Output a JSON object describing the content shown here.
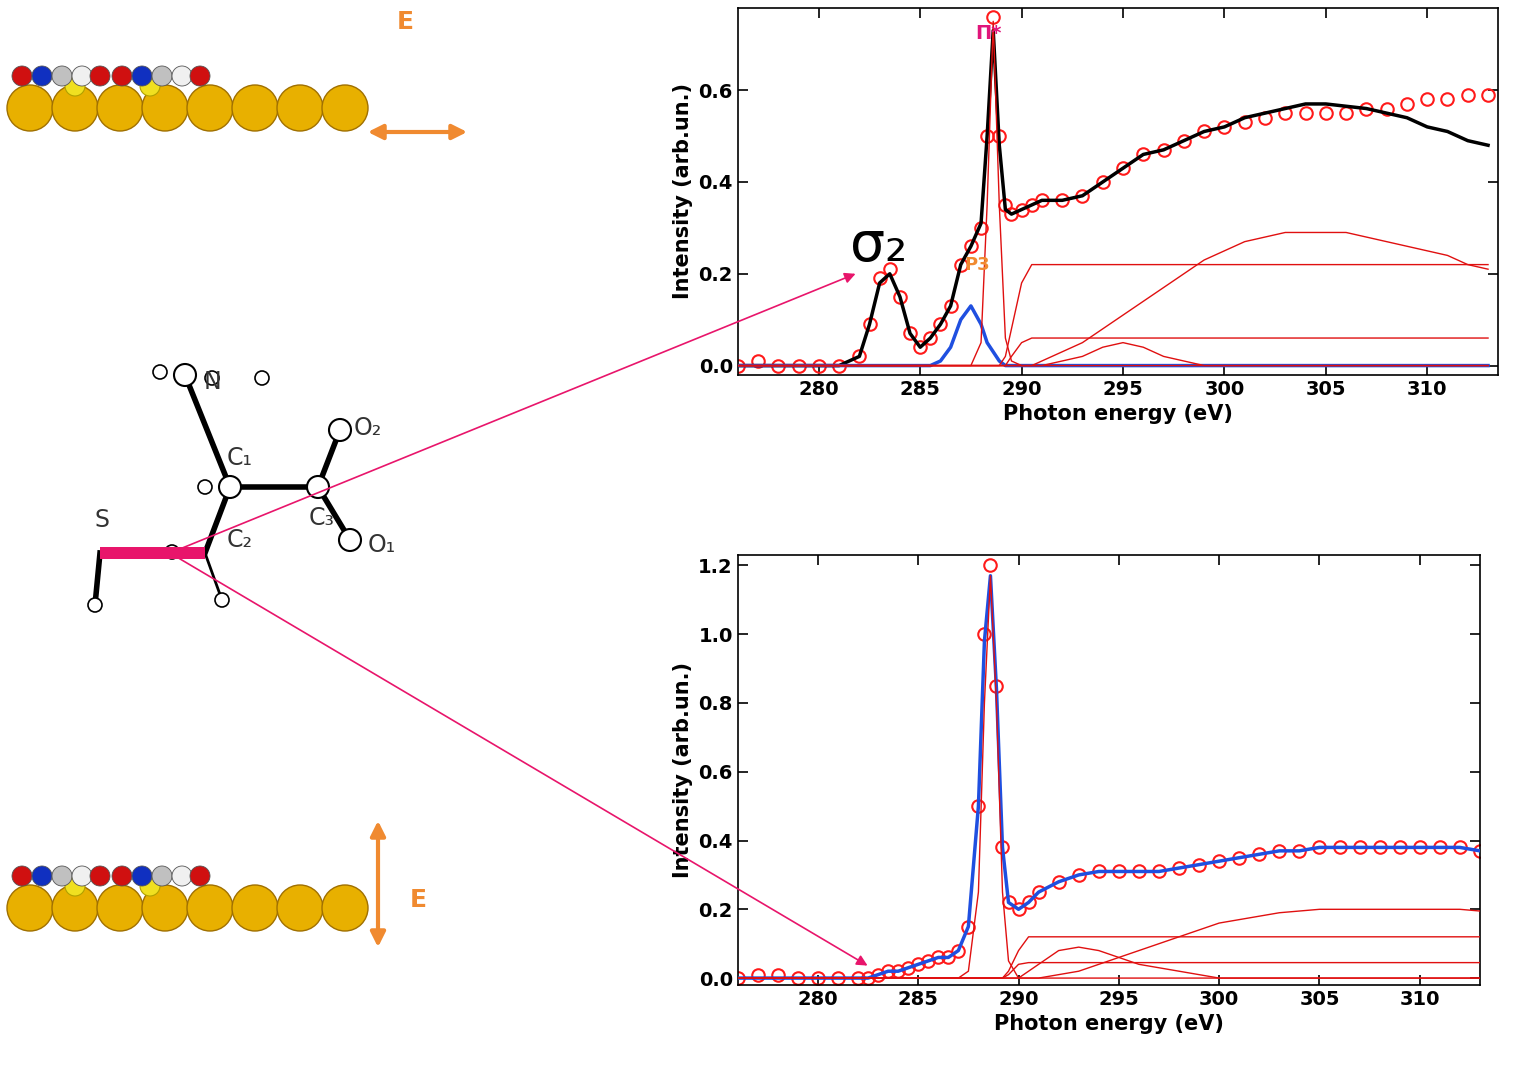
{
  "chart_data": [
    {
      "type": "line",
      "x_label": "Photon energy (eV)",
      "y_label": "Intensity (arb.un.)",
      "x": [
        276,
        277,
        278,
        279,
        280,
        281,
        282,
        282.5,
        283,
        283.5,
        284,
        284.5,
        285,
        285.5,
        286,
        286.5,
        287,
        287.5,
        288,
        288.3,
        288.6,
        288.9,
        289.2,
        289.5,
        290,
        290.5,
        291,
        292,
        293,
        294,
        295,
        296,
        297,
        298,
        299,
        300,
        301,
        302,
        303,
        304,
        305,
        306,
        307,
        308,
        309,
        310,
        311,
        312,
        313
      ],
      "xlim": [
        276,
        313.5
      ],
      "ylim": [
        -0.02,
        0.78
      ],
      "xticks": [
        280,
        285,
        290,
        295,
        300,
        305,
        310
      ],
      "yticks": [
        {
          "value": 0,
          "label": "0.0"
        },
        0.2,
        0.4,
        0.6
      ],
      "annotations": [
        {
          "text": "σ₂",
          "color": "#000000"
        },
        {
          "text": "Π*",
          "color": "#e0157a"
        },
        {
          "text": "P3",
          "color": "#f08a30"
        }
      ],
      "series": [
        {
          "color": "#ff1a1a",
          "marker": "circle",
          "line_style": "none",
          "values": [
            0,
            0.01,
            0,
            0,
            0,
            0,
            0.02,
            0.09,
            0.19,
            0.21,
            0.15,
            0.07,
            0.04,
            0.06,
            0.09,
            0.13,
            0.22,
            0.26,
            0.3,
            0.5,
            0.76,
            0.5,
            0.35,
            0.33,
            0.34,
            0.35,
            0.36,
            0.36,
            0.37,
            0.4,
            0.43,
            0.46,
            0.47,
            0.49,
            0.51,
            0.52,
            0.53,
            0.54,
            0.55,
            0.55,
            0.55,
            0.55,
            0.56,
            0.56,
            0.57,
            0.58,
            0.58,
            0.59,
            0.59
          ]
        },
        {
          "color": "#000000",
          "marker": "none",
          "line_style": "solid",
          "values": [
            0,
            0,
            0,
            0,
            0,
            0,
            0.02,
            0.09,
            0.18,
            0.2,
            0.15,
            0.07,
            0.04,
            0.06,
            0.09,
            0.13,
            0.22,
            0.26,
            0.31,
            0.5,
            0.73,
            0.48,
            0.34,
            0.33,
            0.34,
            0.35,
            0.36,
            0.36,
            0.37,
            0.4,
            0.43,
            0.46,
            0.47,
            0.49,
            0.51,
            0.52,
            0.54,
            0.55,
            0.56,
            0.57,
            0.57,
            0.565,
            0.56,
            0.55,
            0.54,
            0.52,
            0.51,
            0.49,
            0.48
          ]
        },
        {
          "color": "#1f4fe0",
          "marker": "none",
          "line_style": "solid",
          "values": [
            0,
            0,
            0,
            0,
            0,
            0,
            0,
            0,
            0,
            0,
            0,
            0,
            0,
            0,
            0.01,
            0.04,
            0.1,
            0.13,
            0.09,
            0.05,
            0.03,
            0.01,
            0,
            0,
            0,
            0,
            0,
            0,
            0,
            0,
            0,
            0,
            0,
            0,
            0,
            0,
            0,
            0,
            0,
            0,
            0,
            0,
            0,
            0,
            0,
            0,
            0,
            0,
            0
          ]
        },
        {
          "color": "#e01010",
          "marker": "none",
          "line_style": "solid",
          "values": [
            0,
            0,
            0,
            0,
            0,
            0,
            0,
            0,
            0,
            0,
            0,
            0,
            0,
            0,
            0,
            0,
            0,
            0,
            0.05,
            0.35,
            0.75,
            0.35,
            0.06,
            0.01,
            0,
            0,
            0,
            0,
            0,
            0,
            0,
            0,
            0,
            0,
            0,
            0,
            0,
            0,
            0,
            0,
            0,
            0,
            0,
            0,
            0,
            0,
            0,
            0,
            0
          ]
        },
        {
          "color": "#e01010",
          "marker": "none",
          "line_style": "solid",
          "values": [
            0,
            0,
            0,
            0,
            0,
            0,
            0,
            0,
            0,
            0,
            0,
            0,
            0,
            0,
            0,
            0,
            0,
            0,
            0,
            0,
            0,
            0,
            0.02,
            0.08,
            0.18,
            0.22,
            0.22,
            0.22,
            0.22,
            0.22,
            0.22,
            0.22,
            0.22,
            0.22,
            0.22,
            0.22,
            0.22,
            0.22,
            0.22,
            0.22,
            0.22,
            0.22,
            0.22,
            0.22,
            0.22,
            0.22,
            0.22,
            0.22,
            0.22
          ]
        },
        {
          "color": "#e01010",
          "marker": "none",
          "line_style": "solid",
          "values": [
            0,
            0,
            0,
            0,
            0,
            0,
            0,
            0,
            0,
            0,
            0,
            0,
            0,
            0,
            0,
            0,
            0,
            0,
            0,
            0,
            0,
            0,
            0,
            0.02,
            0.05,
            0.06,
            0.06,
            0.06,
            0.06,
            0.06,
            0.06,
            0.06,
            0.06,
            0.06,
            0.06,
            0.06,
            0.06,
            0.06,
            0.06,
            0.06,
            0.06,
            0.06,
            0.06,
            0.06,
            0.06,
            0.06,
            0.06,
            0.06,
            0.06
          ]
        },
        {
          "color": "#e01010",
          "marker": "none",
          "line_style": "solid",
          "values": [
            0,
            0,
            0,
            0,
            0,
            0,
            0,
            0,
            0,
            0,
            0,
            0,
            0,
            0,
            0,
            0,
            0,
            0,
            0,
            0,
            0,
            0,
            0,
            0,
            0,
            0,
            0.01,
            0.03,
            0.05,
            0.08,
            0.11,
            0.14,
            0.17,
            0.2,
            0.23,
            0.25,
            0.27,
            0.28,
            0.29,
            0.29,
            0.29,
            0.29,
            0.28,
            0.27,
            0.26,
            0.25,
            0.24,
            0.22,
            0.21
          ]
        },
        {
          "color": "#e01010",
          "marker": "none",
          "line_style": "solid",
          "values": [
            0,
            0,
            0,
            0,
            0,
            0,
            0,
            0,
            0,
            0,
            0,
            0,
            0,
            0,
            0,
            0,
            0,
            0,
            0,
            0,
            0,
            0,
            0,
            0,
            0,
            0,
            0,
            0.01,
            0.02,
            0.04,
            0.05,
            0.04,
            0.02,
            0.01,
            0,
            0,
            0,
            0,
            0,
            0,
            0,
            0,
            0,
            0,
            0,
            0,
            0,
            0,
            0
          ]
        }
      ]
    },
    {
      "type": "line",
      "x_label": "Photon energy (eV)",
      "y_label": "Intensity (arb.un.)",
      "x": [
        276,
        277,
        278,
        279,
        280,
        281,
        282,
        282.5,
        283,
        283.5,
        284,
        284.5,
        285,
        285.5,
        286,
        286.5,
        287,
        287.5,
        288,
        288.3,
        288.6,
        288.9,
        289.2,
        289.5,
        290,
        290.5,
        291,
        292,
        293,
        294,
        295,
        296,
        297,
        298,
        299,
        300,
        301,
        302,
        303,
        304,
        305,
        306,
        307,
        308,
        309,
        310,
        311,
        312,
        313
      ],
      "xlim": [
        276,
        313
      ],
      "ylim": [
        -0.02,
        1.23
      ],
      "xticks": [
        280,
        285,
        290,
        295,
        300,
        305,
        310
      ],
      "yticks": [
        {
          "value": 0,
          "label": "0.0"
        },
        0.2,
        0.4,
        0.6,
        0.8,
        {
          "value": 1,
          "label": "1.0"
        },
        1.2
      ],
      "series": [
        {
          "color": "#ff1a1a",
          "marker": "circle",
          "line_style": "none",
          "values": [
            0,
            0.01,
            0.01,
            0,
            0,
            0,
            0,
            0,
            0.01,
            0.02,
            0.02,
            0.03,
            0.04,
            0.05,
            0.06,
            0.06,
            0.08,
            0.15,
            0.5,
            1.0,
            1.2,
            0.85,
            0.38,
            0.22,
            0.2,
            0.22,
            0.25,
            0.28,
            0.3,
            0.31,
            0.31,
            0.31,
            0.31,
            0.32,
            0.33,
            0.34,
            0.35,
            0.36,
            0.37,
            0.37,
            0.38,
            0.38,
            0.38,
            0.38,
            0.38,
            0.38,
            0.38,
            0.38,
            0.37
          ]
        },
        {
          "color": "#1f4fe0",
          "marker": "none",
          "line_style": "solid",
          "values": [
            0,
            0,
            0,
            0,
            0,
            0,
            0,
            0,
            0.01,
            0.02,
            0.02,
            0.03,
            0.04,
            0.05,
            0.06,
            0.06,
            0.08,
            0.15,
            0.5,
            0.98,
            1.17,
            0.84,
            0.38,
            0.22,
            0.2,
            0.22,
            0.25,
            0.28,
            0.3,
            0.31,
            0.31,
            0.31,
            0.31,
            0.32,
            0.33,
            0.34,
            0.35,
            0.36,
            0.37,
            0.37,
            0.38,
            0.38,
            0.38,
            0.38,
            0.38,
            0.38,
            0.38,
            0.38,
            0.37
          ]
        },
        {
          "color": "#e01010",
          "marker": "none",
          "line_style": "solid",
          "values": [
            0,
            0,
            0,
            0,
            0,
            0,
            0,
            0,
            0,
            0,
            0,
            0,
            0,
            0,
            0,
            0,
            0,
            0.02,
            0.25,
            0.8,
            1.17,
            0.8,
            0.25,
            0.05,
            0,
            0,
            0,
            0,
            0,
            0,
            0,
            0,
            0,
            0,
            0,
            0,
            0,
            0,
            0,
            0,
            0,
            0,
            0,
            0,
            0,
            0,
            0,
            0,
            0
          ]
        },
        {
          "color": "#e01010",
          "marker": "none",
          "line_style": "solid",
          "values": [
            0,
            0,
            0,
            0,
            0,
            0,
            0,
            0,
            0,
            0,
            0,
            0,
            0,
            0,
            0,
            0,
            0,
            0,
            0,
            0,
            0,
            0,
            0,
            0.02,
            0.08,
            0.12,
            0.12,
            0.12,
            0.12,
            0.12,
            0.12,
            0.12,
            0.12,
            0.12,
            0.12,
            0.12,
            0.12,
            0.12,
            0.12,
            0.12,
            0.12,
            0.12,
            0.12,
            0.12,
            0.12,
            0.12,
            0.12,
            0.12,
            0.12
          ]
        },
        {
          "color": "#e01010",
          "marker": "none",
          "line_style": "solid",
          "values": [
            0,
            0,
            0,
            0,
            0,
            0,
            0,
            0,
            0,
            0,
            0,
            0,
            0,
            0,
            0,
            0,
            0,
            0,
            0,
            0,
            0,
            0,
            0,
            0.01,
            0.04,
            0.045,
            0.045,
            0.045,
            0.045,
            0.045,
            0.045,
            0.045,
            0.045,
            0.045,
            0.045,
            0.045,
            0.045,
            0.045,
            0.045,
            0.045,
            0.045,
            0.045,
            0.045,
            0.045,
            0.045,
            0.045,
            0.045,
            0.045,
            0.045
          ]
        },
        {
          "color": "#e01010",
          "marker": "none",
          "line_style": "solid",
          "values": [
            0,
            0,
            0,
            0,
            0,
            0,
            0,
            0,
            0,
            0,
            0,
            0,
            0,
            0,
            0,
            0,
            0,
            0,
            0,
            0,
            0,
            0,
            0,
            0,
            0,
            0,
            0,
            0.01,
            0.02,
            0.04,
            0.06,
            0.08,
            0.1,
            0.12,
            0.14,
            0.16,
            0.17,
            0.18,
            0.19,
            0.195,
            0.2,
            0.2,
            0.2,
            0.2,
            0.2,
            0.2,
            0.2,
            0.2,
            0.195
          ]
        },
        {
          "color": "#e01010",
          "marker": "none",
          "line_style": "solid",
          "values": [
            0,
            0,
            0,
            0,
            0,
            0,
            0,
            0,
            0,
            0,
            0,
            0,
            0,
            0,
            0,
            0,
            0,
            0,
            0,
            0,
            0,
            0,
            0,
            0,
            0,
            0.02,
            0.04,
            0.08,
            0.09,
            0.08,
            0.06,
            0.04,
            0.03,
            0.02,
            0.01,
            0,
            0,
            0,
            0,
            0,
            0,
            0,
            0,
            0,
            0,
            0,
            0,
            0,
            0
          ]
        }
      ]
    }
  ],
  "diagram": {
    "top_field_label": "E",
    "bottom_field_label": "E",
    "molecule_labels": [
      "N",
      "C₁",
      "O₂",
      "C₃",
      "O₁",
      "S",
      "C₂"
    ]
  }
}
